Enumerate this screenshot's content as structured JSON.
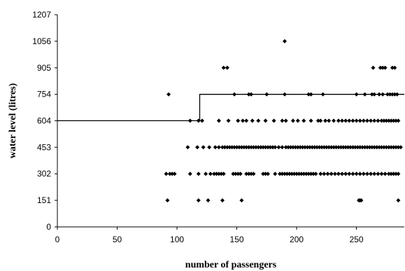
{
  "chart_data": {
    "type": "scatter",
    "title": "",
    "xlabel": "number of passengers",
    "ylabel": "water level (litres)",
    "xlim": [
      0,
      290
    ],
    "ylim": [
      0,
      1207
    ],
    "x_ticks": [
      0,
      50,
      100,
      150,
      200,
      250
    ],
    "y_ticks": [
      0,
      151,
      302,
      453,
      604,
      754,
      905,
      1056,
      1207
    ],
    "grid": false,
    "legend": "none",
    "colors": {
      "points": "#000000",
      "line": "#000000",
      "axis": "#000000"
    },
    "series": [
      {
        "type": "scatter",
        "points": [
          [
            92,
            151
          ],
          [
            118,
            151
          ],
          [
            126,
            151
          ],
          [
            138,
            151
          ],
          [
            154,
            151
          ],
          [
            252,
            151
          ],
          [
            253,
            151
          ],
          [
            254,
            151
          ],
          [
            285,
            151
          ],
          [
            91,
            302
          ],
          [
            94,
            302
          ],
          [
            96,
            302
          ],
          [
            98,
            302
          ],
          [
            111,
            302
          ],
          [
            118,
            302
          ],
          [
            124,
            302
          ],
          [
            128,
            302
          ],
          [
            131,
            302
          ],
          [
            133,
            302
          ],
          [
            135,
            302
          ],
          [
            137,
            302
          ],
          [
            139,
            302
          ],
          [
            147,
            302
          ],
          [
            149,
            302
          ],
          [
            151,
            302
          ],
          [
            153,
            302
          ],
          [
            158,
            302
          ],
          [
            160,
            302
          ],
          [
            162,
            302
          ],
          [
            164,
            302
          ],
          [
            172,
            302
          ],
          [
            174,
            302
          ],
          [
            176,
            302
          ],
          [
            182,
            302
          ],
          [
            186,
            302
          ],
          [
            188,
            302
          ],
          [
            190,
            302
          ],
          [
            192,
            302
          ],
          [
            194,
            302
          ],
          [
            196,
            302
          ],
          [
            198,
            302
          ],
          [
            200,
            302
          ],
          [
            202,
            302
          ],
          [
            204,
            302
          ],
          [
            206,
            302
          ],
          [
            208,
            302
          ],
          [
            210,
            302
          ],
          [
            212,
            302
          ],
          [
            214,
            302
          ],
          [
            216,
            302
          ],
          [
            220,
            302
          ],
          [
            223,
            302
          ],
          [
            226,
            302
          ],
          [
            229,
            302
          ],
          [
            232,
            302
          ],
          [
            235,
            302
          ],
          [
            238,
            302
          ],
          [
            241,
            302
          ],
          [
            244,
            302
          ],
          [
            247,
            302
          ],
          [
            250,
            302
          ],
          [
            253,
            302
          ],
          [
            256,
            302
          ],
          [
            259,
            302
          ],
          [
            262,
            302
          ],
          [
            265,
            302
          ],
          [
            268,
            302
          ],
          [
            271,
            302
          ],
          [
            274,
            302
          ],
          [
            277,
            302
          ],
          [
            279,
            302
          ],
          [
            281,
            302
          ],
          [
            283,
            302
          ],
          [
            285,
            302
          ],
          [
            109,
            453
          ],
          [
            117,
            453
          ],
          [
            122,
            453
          ],
          [
            127,
            453
          ],
          [
            132,
            453
          ],
          [
            135,
            453
          ],
          [
            138,
            453
          ],
          [
            140,
            453
          ],
          [
            142,
            453
          ],
          [
            144,
            453
          ],
          [
            146,
            453
          ],
          [
            148,
            453
          ],
          [
            150,
            453
          ],
          [
            152,
            453
          ],
          [
            154,
            453
          ],
          [
            156,
            453
          ],
          [
            158,
            453
          ],
          [
            160,
            453
          ],
          [
            162,
            453
          ],
          [
            164,
            453
          ],
          [
            166,
            453
          ],
          [
            168,
            453
          ],
          [
            170,
            453
          ],
          [
            172,
            453
          ],
          [
            174,
            453
          ],
          [
            176,
            453
          ],
          [
            178,
            453
          ],
          [
            180,
            453
          ],
          [
            182,
            453
          ],
          [
            185,
            453
          ],
          [
            188,
            453
          ],
          [
            191,
            453
          ],
          [
            193,
            453
          ],
          [
            195,
            453
          ],
          [
            197,
            453
          ],
          [
            199,
            453
          ],
          [
            201,
            453
          ],
          [
            203,
            453
          ],
          [
            205,
            453
          ],
          [
            207,
            453
          ],
          [
            209,
            453
          ],
          [
            211,
            453
          ],
          [
            213,
            453
          ],
          [
            215,
            453
          ],
          [
            217,
            453
          ],
          [
            219,
            453
          ],
          [
            221,
            453
          ],
          [
            223,
            453
          ],
          [
            225,
            453
          ],
          [
            227,
            453
          ],
          [
            229,
            453
          ],
          [
            231,
            453
          ],
          [
            233,
            453
          ],
          [
            235,
            453
          ],
          [
            237,
            453
          ],
          [
            239,
            453
          ],
          [
            241,
            453
          ],
          [
            243,
            453
          ],
          [
            245,
            453
          ],
          [
            247,
            453
          ],
          [
            249,
            453
          ],
          [
            251,
            453
          ],
          [
            253,
            453
          ],
          [
            255,
            453
          ],
          [
            257,
            453
          ],
          [
            259,
            453
          ],
          [
            261,
            453
          ],
          [
            263,
            453
          ],
          [
            265,
            453
          ],
          [
            267,
            453
          ],
          [
            269,
            453
          ],
          [
            271,
            453
          ],
          [
            273,
            453
          ],
          [
            275,
            453
          ],
          [
            277,
            453
          ],
          [
            279,
            453
          ],
          [
            281,
            453
          ],
          [
            283,
            453
          ],
          [
            285,
            453
          ],
          [
            287,
            453
          ],
          [
            111,
            604
          ],
          [
            118,
            604
          ],
          [
            121,
            604
          ],
          [
            135,
            604
          ],
          [
            143,
            604
          ],
          [
            151,
            604
          ],
          [
            155,
            604
          ],
          [
            158,
            604
          ],
          [
            163,
            604
          ],
          [
            168,
            604
          ],
          [
            174,
            604
          ],
          [
            181,
            604
          ],
          [
            188,
            604
          ],
          [
            191,
            604
          ],
          [
            197,
            604
          ],
          [
            201,
            604
          ],
          [
            206,
            604
          ],
          [
            212,
            604
          ],
          [
            218,
            604
          ],
          [
            220,
            604
          ],
          [
            224,
            604
          ],
          [
            227,
            604
          ],
          [
            231,
            604
          ],
          [
            235,
            604
          ],
          [
            238,
            604
          ],
          [
            241,
            604
          ],
          [
            244,
            604
          ],
          [
            247,
            604
          ],
          [
            250,
            604
          ],
          [
            253,
            604
          ],
          [
            256,
            604
          ],
          [
            259,
            604
          ],
          [
            262,
            604
          ],
          [
            265,
            604
          ],
          [
            268,
            604
          ],
          [
            271,
            604
          ],
          [
            273,
            604
          ],
          [
            275,
            604
          ],
          [
            277,
            604
          ],
          [
            279,
            604
          ],
          [
            281,
            604
          ],
          [
            283,
            604
          ],
          [
            285,
            604
          ],
          [
            93,
            754
          ],
          [
            148,
            754
          ],
          [
            160,
            754
          ],
          [
            162,
            754
          ],
          [
            175,
            754
          ],
          [
            190,
            754
          ],
          [
            210,
            754
          ],
          [
            212,
            754
          ],
          [
            222,
            754
          ],
          [
            250,
            754
          ],
          [
            257,
            754
          ],
          [
            263,
            754
          ],
          [
            265,
            754
          ],
          [
            269,
            754
          ],
          [
            272,
            754
          ],
          [
            276,
            754
          ],
          [
            278,
            754
          ],
          [
            280,
            754
          ],
          [
            282,
            754
          ],
          [
            284,
            754
          ],
          [
            139,
            905
          ],
          [
            142,
            905
          ],
          [
            264,
            905
          ],
          [
            270,
            905
          ],
          [
            272,
            905
          ],
          [
            274,
            905
          ],
          [
            280,
            905
          ],
          [
            282,
            905
          ],
          [
            190,
            1056
          ]
        ]
      },
      {
        "type": "step",
        "points": [
          [
            0,
            604
          ],
          [
            119,
            604
          ],
          [
            119,
            754
          ],
          [
            290,
            754
          ]
        ]
      }
    ]
  }
}
